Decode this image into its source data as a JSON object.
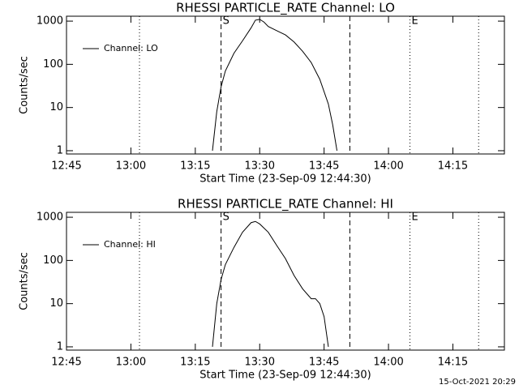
{
  "chart_data": [
    {
      "type": "line",
      "title": "RHESSI PARTICLE_RATE Channel: LO",
      "xlabel": "Start Time (23-Sep-09 12:44:30)",
      "ylabel": "Counts/sec",
      "x": [
        "13:19",
        "13:20",
        "13:21",
        "13:22",
        "13:24",
        "13:26",
        "13:28",
        "13:29",
        "13:30",
        "13:31",
        "13:32",
        "13:34",
        "13:36",
        "13:38",
        "13:40",
        "13:42",
        "13:44",
        "13:46",
        "13:47",
        "13:48"
      ],
      "series": [
        {
          "name": "Channel: LO",
          "color": "#000000",
          "values": [
            1,
            8,
            30,
            70,
            180,
            350,
            700,
            1050,
            1100,
            950,
            750,
            600,
            480,
            330,
            200,
            110,
            45,
            12,
            4,
            1
          ]
        }
      ],
      "xlim": [
        "12:45",
        "14:27"
      ],
      "xticks": [
        "12:45",
        "13:00",
        "13:15",
        "13:30",
        "13:45",
        "14:00",
        "14:15"
      ],
      "ylim": [
        0.84,
        1300
      ],
      "yticks": [
        1,
        10,
        100,
        1000
      ],
      "log_y": true,
      "legend": "upper left",
      "vlines": [
        {
          "x": "13:21",
          "style": "dashed",
          "label": "S"
        },
        {
          "x": "13:51",
          "style": "dashed"
        },
        {
          "x": "13:02",
          "style": "dotted"
        },
        {
          "x": "14:05",
          "style": "dotted",
          "label": "E"
        },
        {
          "x": "14:21",
          "style": "dotted"
        }
      ]
    },
    {
      "type": "line",
      "title": "RHESSI PARTICLE_RATE Channel: HI",
      "xlabel": "Start Time (23-Sep-09 12:44:30)",
      "ylabel": "Counts/sec",
      "x": [
        "13:19",
        "13:20",
        "13:21",
        "13:22",
        "13:24",
        "13:26",
        "13:28",
        "13:29",
        "13:30",
        "13:32",
        "13:34",
        "13:36",
        "13:38",
        "13:40",
        "13:42",
        "13:43",
        "13:44",
        "13:45",
        "13:46"
      ],
      "series": [
        {
          "name": "Channel: HI",
          "color": "#000000",
          "values": [
            1,
            10,
            36,
            80,
            200,
            450,
            750,
            800,
            700,
            450,
            220,
            110,
            45,
            22,
            13,
            13,
            10,
            5,
            1
          ]
        }
      ],
      "xlim": [
        "12:45",
        "14:27"
      ],
      "xticks": [
        "12:45",
        "13:00",
        "13:15",
        "13:30",
        "13:45",
        "14:00",
        "14:15"
      ],
      "ylim": [
        0.84,
        1300
      ],
      "yticks": [
        1,
        10,
        100,
        1000
      ],
      "log_y": true,
      "legend": "upper left",
      "vlines": [
        {
          "x": "13:21",
          "style": "dashed",
          "label": "S"
        },
        {
          "x": "13:51",
          "style": "dashed"
        },
        {
          "x": "13:02",
          "style": "dotted"
        },
        {
          "x": "14:05",
          "style": "dotted",
          "label": "E"
        },
        {
          "x": "14:21",
          "style": "dotted"
        }
      ]
    }
  ],
  "footer": {
    "timestamp": "15-Oct-2021 20:29"
  }
}
